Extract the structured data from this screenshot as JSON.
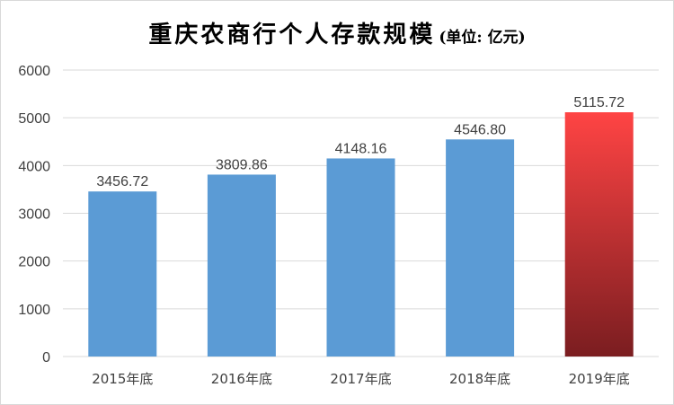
{
  "title": "重庆农商行个人存款规模",
  "unit": "(单位: 亿元)",
  "colors": {
    "bar": "#5b9bd5",
    "highlight_top": "#ff4444",
    "highlight_bottom": "#7a1d20",
    "grid": "#d9d9d9",
    "text": "#404040"
  },
  "chart_data": {
    "type": "bar",
    "title": "重庆农商行个人存款规模",
    "subtitle": "(单位: 亿元)",
    "categories": [
      "2015年底",
      "2016年底",
      "2017年底",
      "2018年底",
      "2019年底"
    ],
    "values": [
      3456.72,
      3809.86,
      4148.16,
      4546.8,
      5115.72
    ],
    "value_labels": [
      "3456.72",
      "3809.86",
      "4148.16",
      "4546.80",
      "5115.72"
    ],
    "highlight_index": 4,
    "ylim": [
      0,
      6000
    ],
    "yticks": [
      "0",
      "1000",
      "2000",
      "3000",
      "4000",
      "5000",
      "6000"
    ],
    "ytick_values": [
      0,
      1000,
      2000,
      3000,
      4000,
      5000,
      6000
    ],
    "grid": true,
    "legend": "none"
  }
}
